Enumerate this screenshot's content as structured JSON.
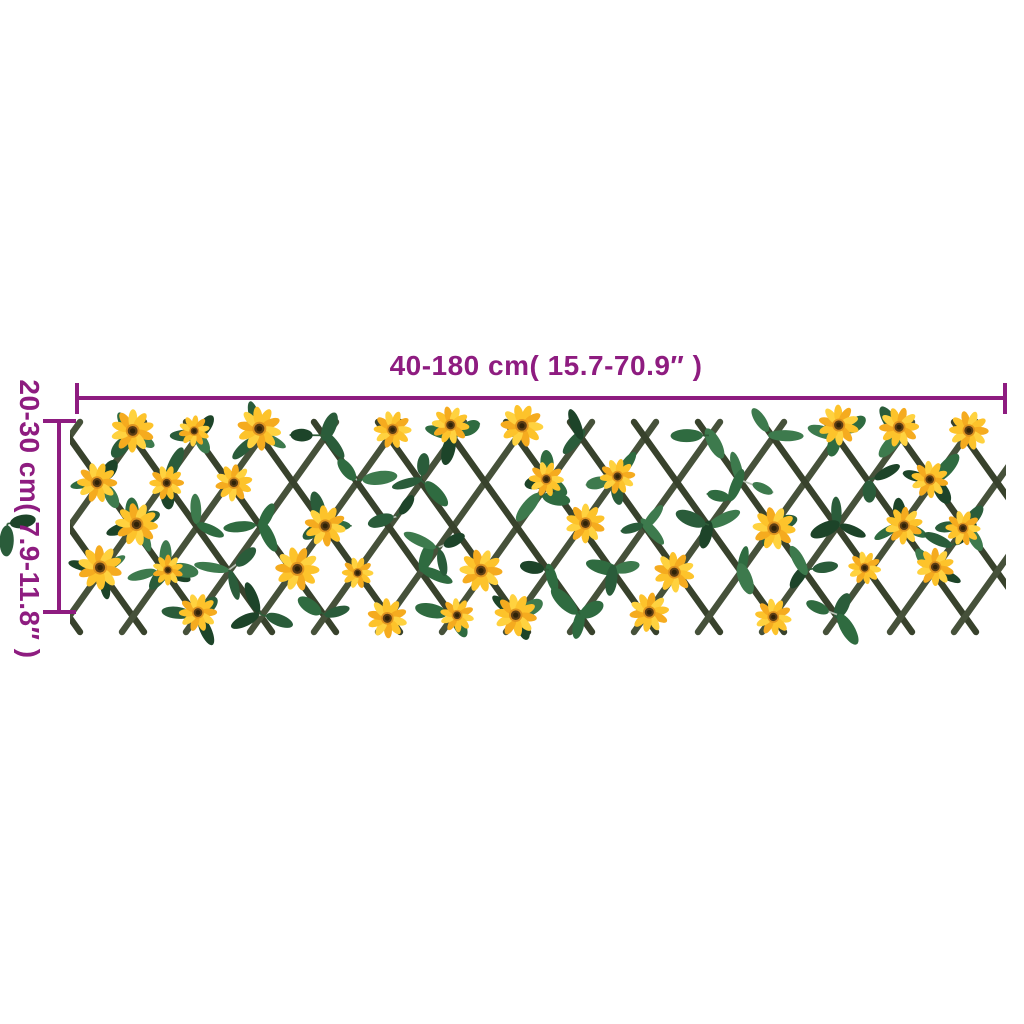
{
  "page": {
    "background": "#ffffff",
    "type": "product-dimension-diagram",
    "product": "expandable artificial flower trellis"
  },
  "dimension_annotations": {
    "color": "#8e1c80",
    "horizontal": {
      "label": "40-180 cm( 15.7-70.9″ )"
    },
    "vertical": {
      "label": "20-30 cm( 7.9-11.8″ )"
    }
  },
  "trellis": {
    "slat_colors": [
      "#38422c",
      "#46513a"
    ],
    "leaf_colors": [
      "#2a5c3a",
      "#1d4429",
      "#3d7a4d",
      "#2f6b40"
    ],
    "petal_colors": [
      "#fdc32b",
      "#f5ab1f",
      "#ffd23f"
    ],
    "flower_center": {
      "ring": "#e09420",
      "outer": "#5d3d14",
      "inner": "#2f2208"
    },
    "stem_color": "#2f5c38",
    "tendril_color": "#b9c2b6"
  }
}
